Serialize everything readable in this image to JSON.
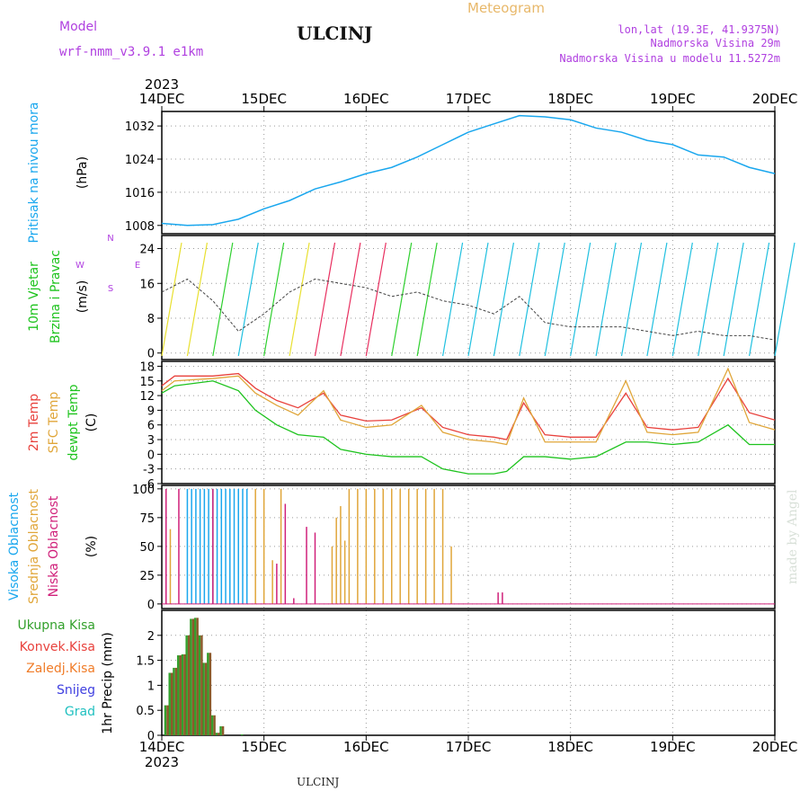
{
  "header": {
    "model_label": "Model",
    "model_name": "wrf-nmm_v3.9.1 e1km",
    "station": "ULCINJ",
    "product": "Meteogram",
    "lonlat": "lon,lat (19.3E, 41.9375N)",
    "elevation": "Nadmorska Visina 29m",
    "model_elevation": "Nadmorska Visina u modelu 11.5272m",
    "footer_station": "ULCINJ",
    "credit": "made by Angel"
  },
  "colors": {
    "pressure": "#1aa7ee",
    "temp2m": "#e8413c",
    "sfc_temp": "#e0a63a",
    "dewpoint": "#1ec31e",
    "high_cloud": "#1aa7ee",
    "mid_cloud": "#e0a63a",
    "low_cloud": "#d0207a",
    "total_precip": "#33a02c",
    "convective": "#e8413c",
    "frozen": "#f07c28",
    "snow": "#4040e0",
    "grad": "#20c0c0",
    "wind_label": "#1ec31e",
    "direction_key": "#b040e0",
    "header": "#b040e0"
  },
  "chart_data": [
    {
      "type": "line",
      "panel": "pressure",
      "title": "",
      "year": "2023",
      "x_ticks": [
        "14DEC",
        "15DEC",
        "16DEC",
        "17DEC",
        "18DEC",
        "19DEC",
        "20DEC"
      ],
      "xlim": [
        "2023-12-14 00:00",
        "2023-12-20 00:00"
      ],
      "ylabel": [
        "Pritisak na nivou mora",
        "(hPa)"
      ],
      "y_ticks": [
        1008,
        1016,
        1024,
        1032
      ],
      "ylim": [
        1006,
        1035.5
      ],
      "grid": true,
      "series": [
        {
          "x": [
            "2023-12-14 00:00",
            "2023-12-14 06:00",
            "2023-12-14 12:00",
            "2023-12-14 18:00",
            "2023-12-15 00:00",
            "2023-12-15 06:00",
            "2023-12-15 12:00",
            "2023-12-15 18:00",
            "2023-12-16 00:00",
            "2023-12-16 06:00",
            "2023-12-16 12:00",
            "2023-12-16 18:00",
            "2023-12-17 00:00",
            "2023-12-17 06:00",
            "2023-12-17 12:00",
            "2023-12-17 18:00",
            "2023-12-18 00:00",
            "2023-12-18 06:00",
            "2023-12-18 12:00",
            "2023-12-18 18:00",
            "2023-12-19 00:00",
            "2023-12-19 06:00",
            "2023-12-19 12:00",
            "2023-12-19 18:00",
            "2023-12-20 00:00"
          ],
          "y": [
            1008.5,
            1008.0,
            1008.2,
            1009.5,
            1012.0,
            1014.0,
            1016.8,
            1018.5,
            1020.5,
            1022.0,
            1024.5,
            1027.5,
            1030.5,
            1032.5,
            1034.5,
            1034.2,
            1033.5,
            1031.5,
            1030.5,
            1028.5,
            1027.5,
            1025.0,
            1024.5,
            1022.0,
            1020.5
          ]
        }
      ]
    },
    {
      "type": "barbs",
      "panel": "wind",
      "ylabel": [
        "10m Vjetar",
        "Brzina i Pravac",
        "(m/s)"
      ],
      "direction_key": [
        "N",
        "E",
        "W",
        "S"
      ],
      "y_ticks": [
        0,
        8,
        16,
        24
      ],
      "ylim": [
        -1.5,
        27
      ],
      "grid": true,
      "series": [
        {
          "x": [
            "2023-12-14 00:00",
            "2023-12-14 06:00",
            "2023-12-14 12:00",
            "2023-12-14 18:00",
            "2023-12-15 00:00",
            "2023-12-15 06:00",
            "2023-12-15 12:00",
            "2023-12-15 18:00",
            "2023-12-16 00:00",
            "2023-12-16 06:00",
            "2023-12-16 12:00",
            "2023-12-16 18:00",
            "2023-12-17 00:00",
            "2023-12-17 06:00",
            "2023-12-17 12:00",
            "2023-12-17 18:00",
            "2023-12-18 00:00",
            "2023-12-18 06:00",
            "2023-12-18 12:00",
            "2023-12-18 18:00",
            "2023-12-19 00:00",
            "2023-12-19 06:00",
            "2023-12-19 12:00",
            "2023-12-19 18:00",
            "2023-12-20 00:00"
          ],
          "speed": [
            14,
            17,
            12,
            5,
            9,
            14,
            17,
            16,
            15,
            13,
            14,
            12,
            11,
            9,
            13,
            7,
            6,
            6,
            6,
            5,
            4,
            5,
            4,
            4,
            3
          ]
        }
      ]
    },
    {
      "type": "line",
      "panel": "temperature",
      "ylabel": [
        "2m Temp",
        "SFC Temp",
        "dewpt Temp",
        "(C)"
      ],
      "y_ticks": [
        -6,
        -3,
        0,
        3,
        6,
        9,
        12,
        15,
        18
      ],
      "ylim": [
        -6,
        19
      ],
      "grid": true,
      "series": [
        {
          "name": "2m Temp",
          "x": [
            "2023-12-14 00:00",
            "2023-12-14 03:00",
            "2023-12-14 12:00",
            "2023-12-14 18:00",
            "2023-12-14 22:00",
            "2023-12-15 03:00",
            "2023-12-15 08:00",
            "2023-12-15 14:00",
            "2023-12-15 18:00",
            "2023-12-16 00:00",
            "2023-12-16 06:00",
            "2023-12-16 13:00",
            "2023-12-16 18:00",
            "2023-12-17 00:00",
            "2023-12-17 06:00",
            "2023-12-17 09:00",
            "2023-12-17 13:00",
            "2023-12-17 18:00",
            "2023-12-18 00:00",
            "2023-12-18 06:00",
            "2023-12-18 13:00",
            "2023-12-18 18:00",
            "2023-12-19 00:00",
            "2023-12-19 06:00",
            "2023-12-19 13:00",
            "2023-12-19 18:00",
            "2023-12-20 00:00"
          ],
          "y": [
            14,
            16,
            16,
            16.5,
            13.5,
            11,
            9.5,
            12.5,
            8,
            6.8,
            7,
            9.5,
            5.5,
            4,
            3.5,
            3,
            10.5,
            4,
            3.5,
            3.5,
            12.5,
            5.5,
            5,
            5.5,
            15.5,
            8.5,
            7
          ]
        },
        {
          "name": "SFC Temp",
          "x": [
            "2023-12-14 00:00",
            "2023-12-14 03:00",
            "2023-12-14 12:00",
            "2023-12-14 18:00",
            "2023-12-14 22:00",
            "2023-12-15 03:00",
            "2023-12-15 08:00",
            "2023-12-15 14:00",
            "2023-12-15 18:00",
            "2023-12-16 00:00",
            "2023-12-16 06:00",
            "2023-12-16 13:00",
            "2023-12-16 18:00",
            "2023-12-17 00:00",
            "2023-12-17 06:00",
            "2023-12-17 09:00",
            "2023-12-17 13:00",
            "2023-12-17 18:00",
            "2023-12-18 00:00",
            "2023-12-18 06:00",
            "2023-12-18 13:00",
            "2023-12-18 18:00",
            "2023-12-19 00:00",
            "2023-12-19 06:00",
            "2023-12-19 13:00",
            "2023-12-19 18:00",
            "2023-12-20 00:00"
          ],
          "y": [
            13,
            15,
            15.5,
            16,
            12.5,
            10,
            8,
            13,
            7,
            5.5,
            6,
            10,
            4.5,
            3,
            2.5,
            2,
            11.5,
            2.5,
            2.5,
            2.5,
            15,
            4.5,
            4,
            4.5,
            17.5,
            6.5,
            5
          ]
        },
        {
          "name": "dewpt Temp",
          "x": [
            "2023-12-14 00:00",
            "2023-12-14 03:00",
            "2023-12-14 12:00",
            "2023-12-14 18:00",
            "2023-12-14 22:00",
            "2023-12-15 03:00",
            "2023-12-15 08:00",
            "2023-12-15 14:00",
            "2023-12-15 18:00",
            "2023-12-16 00:00",
            "2023-12-16 06:00",
            "2023-12-16 13:00",
            "2023-12-16 18:00",
            "2023-12-17 00:00",
            "2023-12-17 06:00",
            "2023-12-17 09:00",
            "2023-12-17 13:00",
            "2023-12-17 18:00",
            "2023-12-18 00:00",
            "2023-12-18 06:00",
            "2023-12-18 13:00",
            "2023-12-18 18:00",
            "2023-12-19 00:00",
            "2023-12-19 06:00",
            "2023-12-19 13:00",
            "2023-12-19 18:00",
            "2023-12-20 00:00"
          ],
          "y": [
            12.5,
            14,
            15,
            13,
            9,
            6,
            4,
            3.5,
            1,
            0,
            -0.5,
            -0.5,
            -3,
            -4,
            -4,
            -3.5,
            -0.5,
            -0.5,
            -1,
            -0.5,
            2.5,
            2.5,
            2,
            2.5,
            6,
            2,
            2
          ]
        }
      ]
    },
    {
      "type": "bar",
      "panel": "clouds",
      "ylabel": [
        "Visoka Oblacnost",
        "Srednja Oblacnost",
        "Niska Oblacnost",
        "(%)"
      ],
      "y_ticks": [
        0,
        25,
        50,
        75,
        100
      ],
      "ylim": [
        -4,
        103
      ],
      "grid": true,
      "series": [
        {
          "name": "Visoka Oblacnost",
          "x": [
            "2023-12-14 06:00",
            "2023-12-14 07:00",
            "2023-12-14 08:00",
            "2023-12-14 09:00",
            "2023-12-14 10:00",
            "2023-12-14 11:00",
            "2023-12-14 12:00",
            "2023-12-14 13:00",
            "2023-12-14 14:00",
            "2023-12-14 15:00",
            "2023-12-14 16:00",
            "2023-12-14 17:00",
            "2023-12-14 18:00",
            "2023-12-14 19:00",
            "2023-12-14 20:00"
          ],
          "values": [
            100,
            100,
            100,
            100,
            100,
            100,
            100,
            100,
            100,
            100,
            100,
            100,
            100,
            100,
            100
          ]
        },
        {
          "name": "Srednja Oblacnost",
          "x": [
            "2023-12-14 02:00",
            "2023-12-14 22:00",
            "2023-12-15 00:00",
            "2023-12-15 02:00",
            "2023-12-15 04:00",
            "2023-12-15 16:00",
            "2023-12-15 17:00",
            "2023-12-15 18:00",
            "2023-12-15 19:00",
            "2023-12-15 20:00",
            "2023-12-15 22:00",
            "2023-12-16 00:00",
            "2023-12-16 02:00",
            "2023-12-16 04:00",
            "2023-12-16 06:00",
            "2023-12-16 08:00",
            "2023-12-16 10:00",
            "2023-12-16 12:00",
            "2023-12-16 14:00",
            "2023-12-16 16:00",
            "2023-12-16 18:00",
            "2023-12-16 20:00"
          ],
          "values": [
            65,
            100,
            100,
            38,
            100,
            50,
            75,
            85,
            55,
            100,
            100,
            100,
            100,
            100,
            100,
            100,
            100,
            100,
            100,
            100,
            100,
            50
          ]
        },
        {
          "name": "Niska Oblacnost",
          "x": [
            "2023-12-14 01:00",
            "2023-12-14 04:00",
            "2023-12-14 12:00",
            "2023-12-15 03:00",
            "2023-12-15 05:00",
            "2023-12-15 07:00",
            "2023-12-15 10:00",
            "2023-12-15 12:00",
            "2023-12-17 07:00",
            "2023-12-17 08:00"
          ],
          "values": [
            100,
            100,
            100,
            35,
            87,
            5,
            67,
            62,
            10,
            10
          ]
        }
      ]
    },
    {
      "type": "bar",
      "panel": "precipitation",
      "ylabel": [
        "1hr Precip (mm)"
      ],
      "legend": [
        "Ukupna Kisa",
        "Konvek.Kisa",
        "Zaledj.Kisa",
        "Snijeg",
        "Grad"
      ],
      "x_ticks": [
        "14DEC",
        "15DEC",
        "16DEC",
        "17DEC",
        "18DEC",
        "19DEC",
        "20DEC"
      ],
      "year": "2023",
      "y_ticks": [
        0,
        0.5,
        1,
        1.5,
        2
      ],
      "y_tick_labels": [
        "0",
        "0.5",
        "1",
        "1.5",
        "2"
      ],
      "ylim": [
        0,
        2.5
      ],
      "grid": true,
      "series": [
        {
          "name": "Ukupna Kisa",
          "x": [
            "2023-12-14 01:00",
            "2023-12-14 02:00",
            "2023-12-14 03:00",
            "2023-12-14 04:00",
            "2023-12-14 05:00",
            "2023-12-14 06:00",
            "2023-12-14 07:00",
            "2023-12-14 08:00",
            "2023-12-14 09:00",
            "2023-12-14 10:00",
            "2023-12-14 11:00",
            "2023-12-14 12:00",
            "2023-12-14 13:00",
            "2023-12-14 14:00",
            "2023-12-14 19:00"
          ],
          "values": [
            0.6,
            1.25,
            1.35,
            1.6,
            1.62,
            2.0,
            2.33,
            2.35,
            2.0,
            1.45,
            1.65,
            0.4,
            0.05,
            0.18,
            0.02
          ]
        },
        {
          "name": "Konvek.Kisa",
          "x": [
            "2023-12-14 01:00",
            "2023-12-14 02:00",
            "2023-12-14 03:00",
            "2023-12-14 04:00",
            "2023-12-14 05:00",
            "2023-12-14 06:00",
            "2023-12-14 07:00",
            "2023-12-14 08:00",
            "2023-12-14 09:00",
            "2023-12-14 10:00",
            "2023-12-14 11:00",
            "2023-12-14 12:00",
            "2023-12-14 13:00",
            "2023-12-14 14:00"
          ],
          "values": [
            0.6,
            1.25,
            1.35,
            1.6,
            1.62,
            2.0,
            2.33,
            2.35,
            2.0,
            1.45,
            1.65,
            0.4,
            0.05,
            0.18
          ]
        }
      ]
    }
  ]
}
